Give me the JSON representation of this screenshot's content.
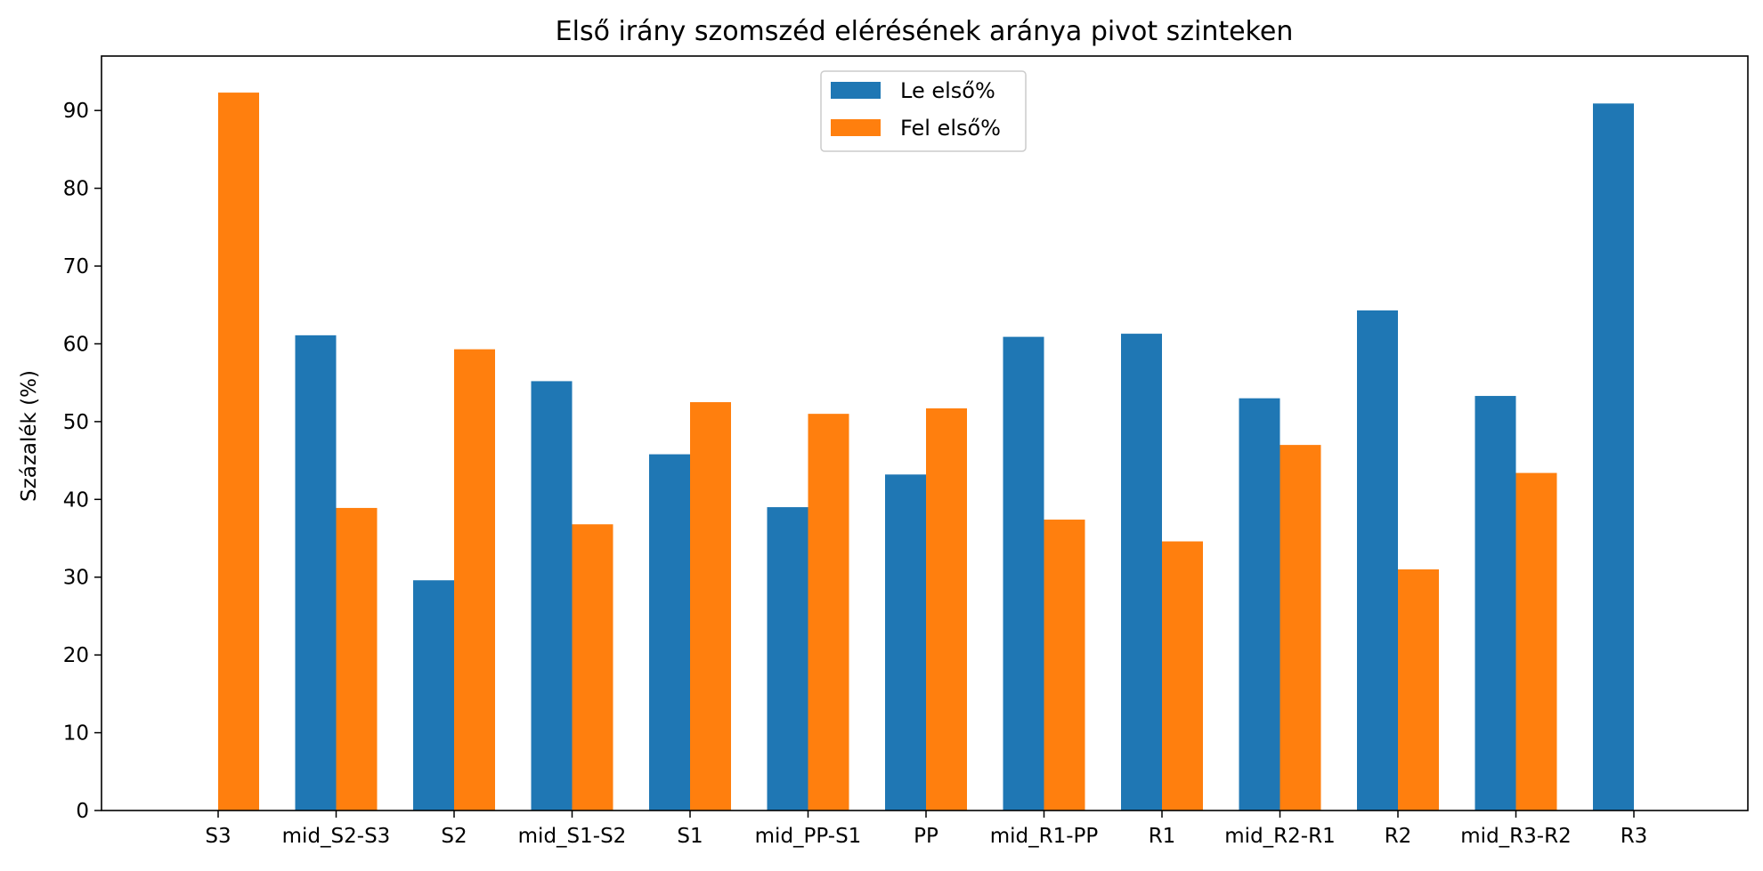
{
  "chart_data": {
    "type": "bar",
    "title": "Első irány szomszéd elérésének aránya pivot szinteken",
    "xlabel": "",
    "ylabel": "Százalék (%)",
    "ylim": [
      0,
      97
    ],
    "yticks": [
      0,
      10,
      20,
      30,
      40,
      50,
      60,
      70,
      80,
      90
    ],
    "grid": false,
    "legend_position": "upper center",
    "categories": [
      "S3",
      "mid_S2-S3",
      "S2",
      "mid_S1-S2",
      "S1",
      "mid_PP-S1",
      "PP",
      "mid_R1-PP",
      "R1",
      "mid_R2-R1",
      "R2",
      "mid_R3-R2",
      "R3"
    ],
    "series": [
      {
        "name": "Le első%",
        "color": "#1f77b4",
        "values": [
          0,
          61.1,
          29.6,
          55.2,
          45.8,
          39.0,
          43.2,
          60.9,
          61.3,
          53.0,
          64.3,
          53.3,
          90.9
        ]
      },
      {
        "name": "Fel első%",
        "color": "#ff7f0e",
        "values": [
          92.3,
          38.9,
          59.3,
          36.8,
          52.5,
          51.0,
          51.7,
          37.4,
          34.6,
          47.0,
          31.0,
          43.4,
          0
        ]
      }
    ]
  }
}
